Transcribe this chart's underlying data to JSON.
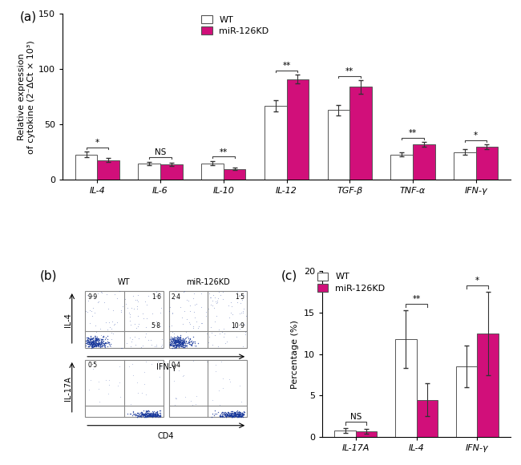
{
  "panel_a": {
    "categories": [
      "IL-4",
      "IL-6",
      "IL-10",
      "IL-12",
      "TGF-β",
      "TNF-α",
      "IFN-γ"
    ],
    "wt_values": [
      23,
      15,
      15,
      67,
      63,
      23,
      25
    ],
    "wt_errors": [
      2.5,
      1.5,
      2,
      5,
      5,
      2,
      2.5
    ],
    "kd_values": [
      18,
      14,
      10,
      91,
      84,
      32,
      30
    ],
    "kd_errors": [
      1.5,
      1.5,
      1,
      4,
      6,
      2,
      2
    ],
    "significance": [
      "*",
      "NS",
      "**",
      "**",
      "**",
      "**",
      "*"
    ],
    "ylim": [
      0,
      150
    ],
    "yticks": [
      0,
      50,
      100,
      150
    ],
    "ylabel": "Relative expression\nof cytokine (2⁻ΔCt × 10³)",
    "bar_color_wt": "#ffffff",
    "bar_color_kd": "#d10f7a",
    "bar_edge_color": "#555555",
    "bar_width": 0.35
  },
  "panel_c": {
    "categories": [
      "IL-17A",
      "IL-4",
      "IFN-γ"
    ],
    "wt_values": [
      0.8,
      11.8,
      8.5
    ],
    "wt_errors": [
      0.3,
      3.5,
      2.5
    ],
    "kd_values": [
      0.7,
      4.5,
      12.5
    ],
    "kd_errors": [
      0.3,
      2.0,
      5.0
    ],
    "significance": [
      "NS",
      "**",
      "*"
    ],
    "ylim": [
      0,
      20
    ],
    "yticks": [
      0,
      5,
      10,
      15,
      20
    ],
    "ylabel": "Percentage (%)",
    "bar_color_wt": "#ffffff",
    "bar_color_kd": "#d10f7a",
    "bar_edge_color": "#555555",
    "bar_width": 0.35
  },
  "panel_b": {
    "title_wt": "WT",
    "title_kd": "miR-126KD",
    "ylabel_top": "IL-4",
    "ylabel_bottom": "IL-17A",
    "xlabel_top": "IFN-γ",
    "xlabel_bottom": "CD4",
    "quad_top_wt": [
      "9·9",
      "1·6",
      "5·8"
    ],
    "quad_top_kd": [
      "2·4",
      "1·5",
      "10·9"
    ],
    "quad_bot_wt": [
      "0·5"
    ],
    "quad_bot_kd": [
      "0·4"
    ]
  },
  "panel_labels_fontsize": 11,
  "legend_fontsize": 8,
  "tick_fontsize": 8,
  "label_fontsize": 8,
  "dot_color": "#1a3a9c"
}
